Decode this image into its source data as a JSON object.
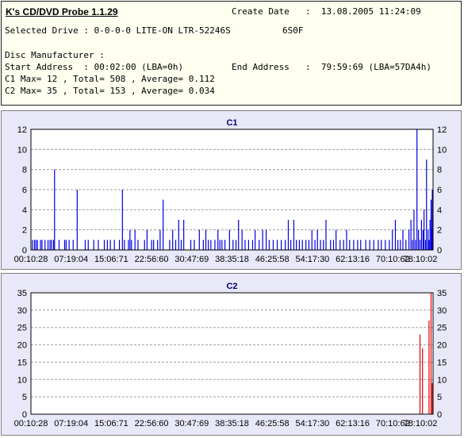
{
  "header": {
    "app_title": "K's CD/DVD Probe 1.1.29",
    "create_date_label": "Create Date",
    "create_date_value": ":  13.08.2005 11:24:09",
    "drive_line": "Selected Drive : 0-0-0-0 LITE-ON LTR-52246S",
    "drive_fw": "6S0F",
    "manufacturer_line": "Disc Manufacturer :",
    "start_line": "Start Address  : 00:02:00 (LBA=0h)",
    "end_label": "End Address",
    "end_value": ":  79:59:69 (LBA=57DA4h)",
    "c1_line": "C1 Max= 12 , Total= 508 , Average= 0.112",
    "c2_line": "C2 Max= 35 , Total= 153 , Average= 0.034"
  },
  "colors": {
    "c1": "#0000e0",
    "c2": "#e00000",
    "plot_bg": "#ffffff",
    "panel_bg": "#e8e8f8",
    "title": "#000080"
  },
  "chart_data": [
    {
      "type": "bar",
      "title": "C1",
      "xlabel": "",
      "ylabel": "",
      "ylim": [
        0,
        12
      ],
      "yticks": [
        0,
        2,
        4,
        6,
        8,
        10,
        12
      ],
      "x_tick_labels": [
        "00:10:28",
        "07:19:04",
        "15:06:71",
        "22:56:60",
        "30:47:69",
        "38:35:18",
        "46:25:58",
        "54:17:30",
        "62:13:16",
        "70:10:62",
        "78:10:02"
      ],
      "x_range_minutes": [
        0,
        80
      ],
      "grid": true,
      "color": "#0000e0",
      "points": [
        [
          0.3,
          1
        ],
        [
          0.7,
          1
        ],
        [
          1.0,
          1
        ],
        [
          1.3,
          1
        ],
        [
          1.9,
          1
        ],
        [
          2.2,
          1
        ],
        [
          2.8,
          1
        ],
        [
          3.4,
          1
        ],
        [
          3.8,
          1
        ],
        [
          4.1,
          1
        ],
        [
          4.5,
          1
        ],
        [
          4.7,
          8
        ],
        [
          5.6,
          1
        ],
        [
          6.7,
          1
        ],
        [
          7.0,
          1
        ],
        [
          7.6,
          1
        ],
        [
          8.4,
          1
        ],
        [
          9.2,
          6
        ],
        [
          10.8,
          1
        ],
        [
          11.4,
          1
        ],
        [
          12.5,
          1
        ],
        [
          13.4,
          1
        ],
        [
          14.6,
          1
        ],
        [
          15.2,
          1
        ],
        [
          15.8,
          1
        ],
        [
          16.6,
          1
        ],
        [
          17.6,
          1
        ],
        [
          18.2,
          6
        ],
        [
          18.6,
          1
        ],
        [
          19.4,
          1
        ],
        [
          19.7,
          2
        ],
        [
          20.0,
          1
        ],
        [
          20.7,
          2
        ],
        [
          21.3,
          1
        ],
        [
          22.6,
          1
        ],
        [
          23.1,
          2
        ],
        [
          24.0,
          1
        ],
        [
          24.4,
          1
        ],
        [
          25.2,
          1
        ],
        [
          25.7,
          2
        ],
        [
          26.3,
          5
        ],
        [
          27.6,
          1
        ],
        [
          28.2,
          2
        ],
        [
          28.8,
          1
        ],
        [
          29.4,
          3
        ],
        [
          29.9,
          1
        ],
        [
          30.4,
          3
        ],
        [
          31.8,
          1
        ],
        [
          32.5,
          1
        ],
        [
          33.5,
          2
        ],
        [
          34.3,
          1
        ],
        [
          34.8,
          2
        ],
        [
          35.3,
          1
        ],
        [
          35.8,
          1
        ],
        [
          36.6,
          1
        ],
        [
          37.2,
          2
        ],
        [
          37.6,
          1
        ],
        [
          38.0,
          1
        ],
        [
          38.6,
          1
        ],
        [
          39.5,
          2
        ],
        [
          40.2,
          1
        ],
        [
          40.8,
          1
        ],
        [
          41.3,
          3
        ],
        [
          42.0,
          2
        ],
        [
          42.6,
          1
        ],
        [
          43.3,
          1
        ],
        [
          44.1,
          1
        ],
        [
          44.6,
          2
        ],
        [
          45.4,
          1
        ],
        [
          46.1,
          2
        ],
        [
          46.8,
          2
        ],
        [
          47.4,
          1
        ],
        [
          48.2,
          1
        ],
        [
          49.0,
          1
        ],
        [
          49.8,
          1
        ],
        [
          50.6,
          1
        ],
        [
          51.2,
          3
        ],
        [
          51.7,
          1
        ],
        [
          52.3,
          3
        ],
        [
          52.8,
          1
        ],
        [
          53.4,
          1
        ],
        [
          54.0,
          1
        ],
        [
          54.7,
          1
        ],
        [
          55.3,
          1
        ],
        [
          55.9,
          2
        ],
        [
          56.5,
          1
        ],
        [
          57.0,
          2
        ],
        [
          57.6,
          1
        ],
        [
          58.2,
          1
        ],
        [
          58.7,
          3
        ],
        [
          59.6,
          1
        ],
        [
          60.2,
          1
        ],
        [
          60.7,
          2
        ],
        [
          61.5,
          1
        ],
        [
          62.2,
          1
        ],
        [
          62.8,
          2
        ],
        [
          63.4,
          1
        ],
        [
          64.2,
          1
        ],
        [
          65.0,
          1
        ],
        [
          65.6,
          1
        ],
        [
          66.6,
          1
        ],
        [
          67.4,
          1
        ],
        [
          68.2,
          1
        ],
        [
          69.1,
          1
        ],
        [
          69.7,
          1
        ],
        [
          70.5,
          1
        ],
        [
          71.3,
          1
        ],
        [
          71.9,
          2
        ],
        [
          72.5,
          3
        ],
        [
          73.0,
          1
        ],
        [
          73.5,
          1
        ],
        [
          74.0,
          2
        ],
        [
          74.6,
          1
        ],
        [
          75.2,
          2
        ],
        [
          75.6,
          3
        ],
        [
          75.9,
          1
        ],
        [
          76.2,
          4
        ],
        [
          76.5,
          1
        ],
        [
          76.8,
          12
        ],
        [
          77.1,
          2
        ],
        [
          77.4,
          1
        ],
        [
          77.7,
          3
        ],
        [
          78.0,
          2
        ],
        [
          78.2,
          4
        ],
        [
          78.5,
          1
        ],
        [
          78.7,
          9
        ],
        [
          79.0,
          2
        ],
        [
          79.2,
          1
        ],
        [
          79.4,
          3
        ],
        [
          79.6,
          5
        ],
        [
          79.8,
          2
        ],
        [
          80.0,
          1
        ],
        [
          80.2,
          5
        ],
        [
          80.4,
          2
        ],
        [
          80.6,
          1
        ],
        [
          80.8,
          3
        ],
        [
          81.0,
          4
        ],
        [
          81.2,
          1
        ],
        [
          81.4,
          2
        ],
        [
          81.6,
          6
        ]
      ]
    },
    {
      "type": "bar",
      "title": "C2",
      "xlabel": "",
      "ylabel": "",
      "ylim": [
        0,
        35
      ],
      "yticks": [
        0,
        5,
        10,
        15,
        20,
        25,
        30,
        35
      ],
      "x_tick_labels": [
        "00:10:28",
        "07:19:04",
        "15:06:71",
        "22:56:60",
        "30:47:69",
        "38:35:18",
        "46:25:58",
        "54:17:30",
        "62:13:16",
        "70:10:62",
        "78:10:02"
      ],
      "x_range_minutes": [
        0,
        80
      ],
      "grid": true,
      "color": "#e00000",
      "points": [
        [
          77.4,
          23
        ],
        [
          77.9,
          19
        ],
        [
          79.2,
          27
        ],
        [
          79.6,
          35
        ],
        [
          80.5,
          9
        ],
        [
          80.8,
          8
        ]
      ]
    }
  ]
}
